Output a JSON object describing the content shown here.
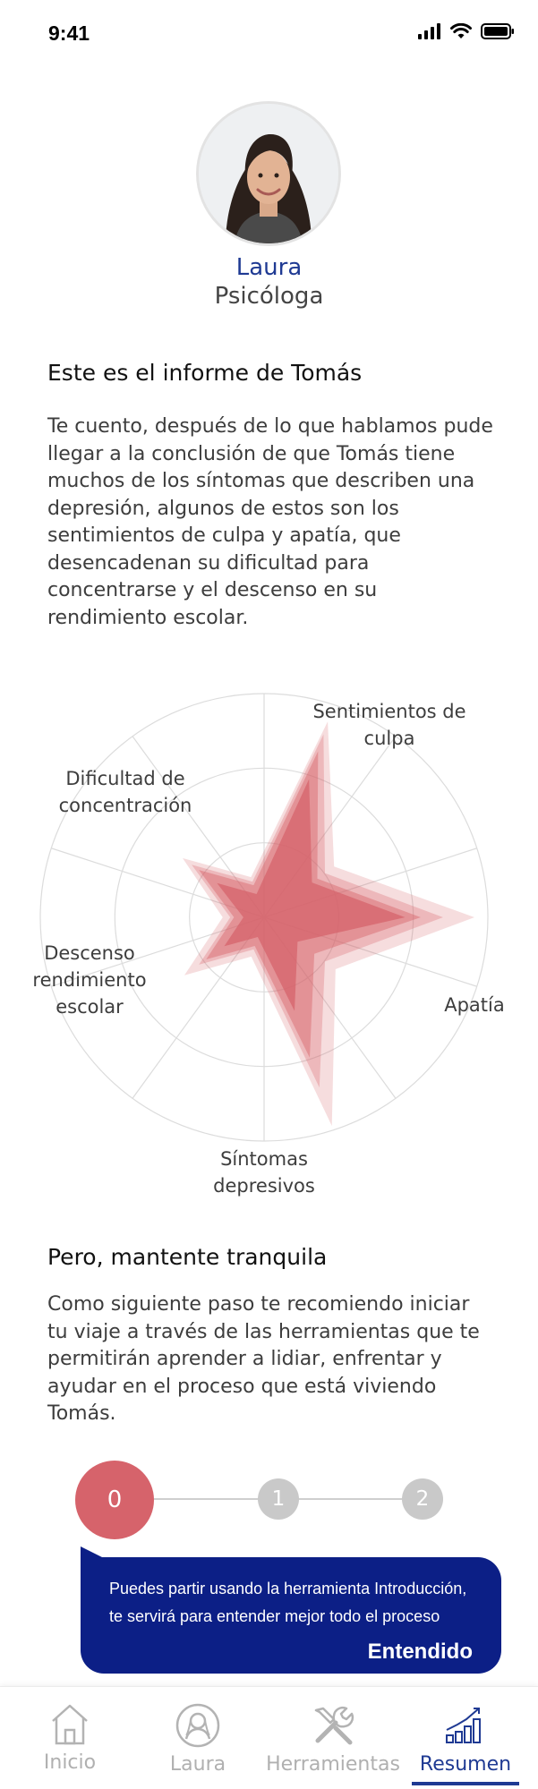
{
  "status_bar": {
    "time": "9:41"
  },
  "profile": {
    "name": "Laura",
    "role": "Psicóloga"
  },
  "report": {
    "title": "Este es el informe de Tomás",
    "body": "Te cuento, después de lo que hablamos pude llegar a la conclusión de que Tomás tiene muchos de los síntomas que describen una depresión, algunos de estos son los sentimientos de culpa y apatía, que desencadenan su dificultad para concentrarse y el descenso en su rendimiento escolar."
  },
  "chart_data": {
    "type": "radar",
    "axes": [
      "Sentimientos de culpa",
      "Apatía",
      "Síntomas depresivos",
      "Descenso rendimiento escolar",
      "Dificultad de concentración"
    ],
    "axis_labels": [
      [
        "Sentimientos de",
        "culpa"
      ],
      [
        "Apatía"
      ],
      [
        "Síntomas",
        "depresivos"
      ],
      [
        "Descenso",
        "rendimiento",
        "escolar"
      ],
      [
        "Dificultad de",
        "concentración"
      ]
    ],
    "rings": 3,
    "max": 1,
    "series": [
      {
        "values": [
          0.92,
          0.94,
          0.98,
          0.44,
          0.45
        ],
        "color": "#d6636b",
        "opacity": 0.22
      },
      {
        "values": [
          0.86,
          0.8,
          0.8,
          0.36,
          0.4
        ],
        "color": "#d6636b",
        "opacity": 0.3
      },
      {
        "values": [
          0.78,
          0.7,
          0.66,
          0.32,
          0.36
        ],
        "color": "#d6636b",
        "opacity": 0.45
      },
      {
        "values": [
          0.65,
          0.63,
          0.44,
          0.22,
          0.26
        ],
        "color": "#d6636b",
        "opacity": 0.75
      }
    ]
  },
  "calm": {
    "title": "Pero, mantente tranquila",
    "body": "Como siguiente paso te recomiendo iniciar tu viaje a través de las herramientas que te permitirán aprender a lidiar, enfrentar y ayudar en el proceso que está viviendo Tomás."
  },
  "stepper": {
    "steps": [
      "0",
      "1",
      "2"
    ],
    "active": 0
  },
  "tooltip": {
    "text": "Puedes partir usando la herramienta Introducción, te servirá para entender mejor todo el proceso",
    "button": "Entendido"
  },
  "tabs": [
    {
      "label": "Inicio",
      "icon": "home-icon"
    },
    {
      "label": "Laura",
      "icon": "person-icon"
    },
    {
      "label": "Herramientas",
      "icon": "tools-icon"
    },
    {
      "label": "Resumen",
      "icon": "chart-icon"
    }
  ],
  "colors": {
    "accent": "#1f3a93",
    "bubble": "#0c1f86",
    "radar": "#d6636b",
    "step_active": "#d6636b",
    "step_inactive": "#c9c9c9"
  }
}
